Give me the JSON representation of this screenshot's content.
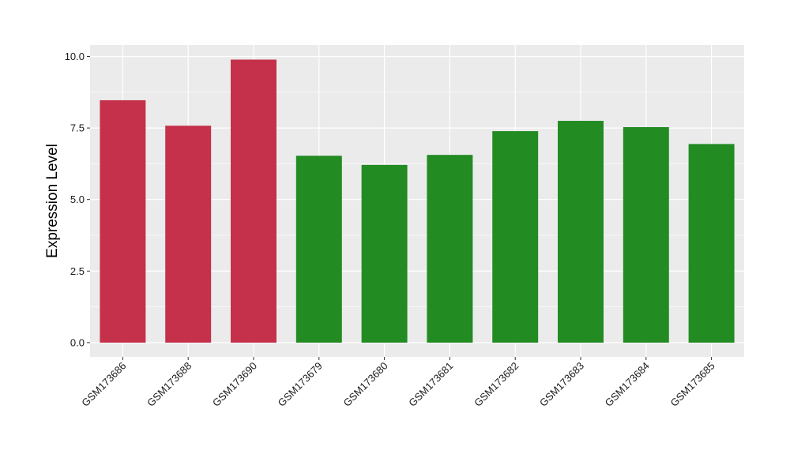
{
  "chart_data": {
    "type": "bar",
    "title": "",
    "xlabel": "",
    "ylabel": "Expression Level",
    "ylim": [
      -0.5,
      10.4
    ],
    "yticks": [
      0.0,
      2.5,
      5.0,
      7.5,
      10.0
    ],
    "ytick_labels": [
      "0.0",
      "2.5",
      "5.0",
      "7.5",
      "10.0"
    ],
    "grid": true,
    "legend": "none",
    "categories": [
      "GSM173686",
      "GSM173688",
      "GSM173690",
      "GSM173679",
      "GSM173680",
      "GSM173681",
      "GSM173682",
      "GSM173683",
      "GSM173684",
      "GSM173685"
    ],
    "values": [
      8.47,
      7.58,
      9.89,
      6.53,
      6.21,
      6.56,
      7.39,
      7.75,
      7.53,
      6.94
    ],
    "bar_colors": [
      "#c5304a",
      "#c5304a",
      "#c5304a",
      "#228b22",
      "#228b22",
      "#228b22",
      "#228b22",
      "#228b22",
      "#228b22",
      "#228b22"
    ],
    "panel_background": "#ebebeb",
    "grid_color": "#ffffff"
  }
}
